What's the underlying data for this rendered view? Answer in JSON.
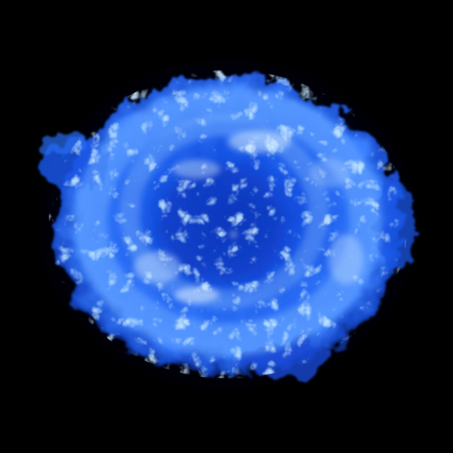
{
  "image": {
    "subject": "supernova-remnant",
    "background_color": "#000000",
    "palette": {
      "deep": "#0a2a8a",
      "mid": "#1f5fe6",
      "bright": "#4a90ff",
      "highlight": "#bfe0ff"
    }
  }
}
